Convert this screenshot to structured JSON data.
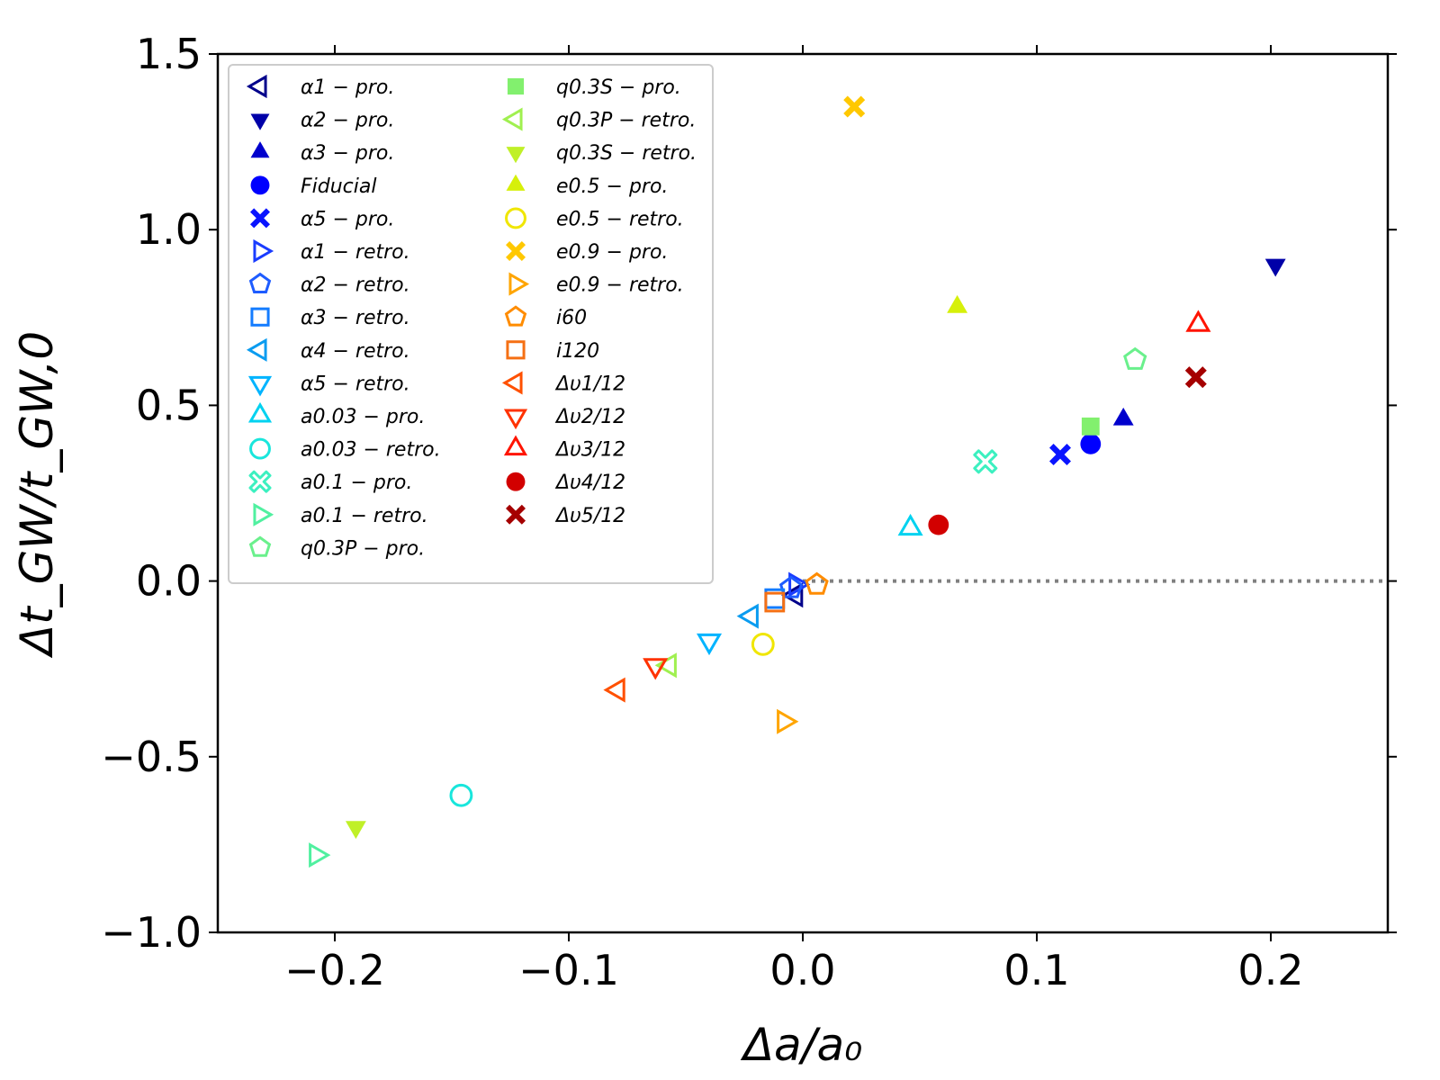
{
  "chart_data": {
    "type": "scatter",
    "title": "",
    "xlabel": "Δa/a₀",
    "ylabel": "Δt_GW/t_GW,0",
    "xlim": [
      -0.25,
      0.25
    ],
    "ylim": [
      -1.0,
      1.5
    ],
    "xticks": [
      -0.2,
      -0.1,
      0.0,
      0.1,
      0.2
    ],
    "xtick_labels": [
      "−0.2",
      "−0.1",
      "0.0",
      "0.1",
      "0.2"
    ],
    "yticks": [
      -1.0,
      -0.5,
      0.0,
      0.5,
      1.0,
      1.5
    ],
    "ytick_labels": [
      "−1.0",
      "−0.5",
      "0.0",
      "0.5",
      "1.0",
      "1.5"
    ],
    "grid": false,
    "reference_line": {
      "y": 0.0,
      "style": "dotted",
      "color": "#808080"
    },
    "legend_position": "upper-left",
    "legend_columns": 2,
    "series": [
      {
        "name": "α1 − pro.",
        "marker": "triangle-left",
        "filled": false,
        "color": "#00008b",
        "x": -0.003,
        "y": -0.04
      },
      {
        "name": "α2 − pro.",
        "marker": "triangle-down",
        "filled": true,
        "color": "#0000a8",
        "x": 0.202,
        "y": 0.9
      },
      {
        "name": "α3 − pro.",
        "marker": "triangle-up",
        "filled": true,
        "color": "#0000cd",
        "x": 0.137,
        "y": 0.46
      },
      {
        "name": "Fiducial",
        "marker": "circle",
        "filled": true,
        "color": "#0000ff",
        "x": 0.123,
        "y": 0.39
      },
      {
        "name": "α5 − pro.",
        "marker": "x-filled",
        "filled": true,
        "color": "#0a14ff",
        "x": 0.11,
        "y": 0.36
      },
      {
        "name": "α1 − retro.",
        "marker": "triangle-right",
        "filled": false,
        "color": "#1a3cff",
        "x": -0.003,
        "y": -0.01
      },
      {
        "name": "α2 − retro.",
        "marker": "pentagon",
        "filled": false,
        "color": "#1e5cff",
        "x": -0.005,
        "y": -0.02
      },
      {
        "name": "α3 − retro.",
        "marker": "square",
        "filled": false,
        "color": "#147cff",
        "x": -0.012,
        "y": -0.05
      },
      {
        "name": "α4 − retro.",
        "marker": "triangle-left",
        "filled": false,
        "color": "#0a9cf0",
        "x": -0.022,
        "y": -0.1
      },
      {
        "name": "α5 − retro.",
        "marker": "triangle-down",
        "filled": false,
        "color": "#00b4ff",
        "x": -0.04,
        "y": -0.17
      },
      {
        "name": "a0.03 − pro.",
        "marker": "triangle-up",
        "filled": false,
        "color": "#00d2f0",
        "x": 0.046,
        "y": 0.15
      },
      {
        "name": "a0.03 − retro.",
        "marker": "circle",
        "filled": false,
        "color": "#19e6dc",
        "x": -0.146,
        "y": -0.61
      },
      {
        "name": "a0.1 − pro.",
        "marker": "x-open",
        "filled": false,
        "color": "#3cf0c0",
        "x": 0.078,
        "y": 0.34
      },
      {
        "name": "a0.1 − retro.",
        "marker": "triangle-right",
        "filled": false,
        "color": "#50f0a0",
        "x": -0.208,
        "y": -0.78
      },
      {
        "name": "q0.3P − pro.",
        "marker": "pentagon",
        "filled": false,
        "color": "#6af08c",
        "x": 0.142,
        "y": 0.63
      },
      {
        "name": "q0.3S − pro.",
        "marker": "square",
        "filled": true,
        "color": "#82f06e",
        "x": 0.123,
        "y": 0.44
      },
      {
        "name": "q0.3P − retro.",
        "marker": "triangle-left",
        "filled": false,
        "color": "#a0f050",
        "x": -0.057,
        "y": -0.24
      },
      {
        "name": "q0.3S − retro.",
        "marker": "triangle-down",
        "filled": true,
        "color": "#c0f028",
        "x": -0.191,
        "y": -0.7
      },
      {
        "name": "e0.5 − pro.",
        "marker": "triangle-up",
        "filled": true,
        "color": "#d6f00a",
        "x": 0.066,
        "y": 0.78
      },
      {
        "name": "e0.5 − retro.",
        "marker": "circle",
        "filled": false,
        "color": "#f0e600",
        "x": -0.017,
        "y": -0.18
      },
      {
        "name": "e0.9 − pro.",
        "marker": "x-filled",
        "filled": true,
        "color": "#ffc800",
        "x": 0.022,
        "y": 1.35
      },
      {
        "name": "e0.9 − retro.",
        "marker": "triangle-right",
        "filled": false,
        "color": "#ffa500",
        "x": -0.008,
        "y": -0.4
      },
      {
        "name": "i60",
        "marker": "pentagon",
        "filled": false,
        "color": "#ff8c00",
        "x": 0.006,
        "y": -0.01
      },
      {
        "name": "i120",
        "marker": "square",
        "filled": false,
        "color": "#f57014",
        "x": -0.012,
        "y": -0.06
      },
      {
        "name": "Δυ1/12",
        "marker": "triangle-left",
        "filled": false,
        "color": "#ff5000",
        "x": -0.079,
        "y": -0.31
      },
      {
        "name": "Δυ2/12",
        "marker": "triangle-down",
        "filled": false,
        "color": "#ff3200",
        "x": -0.063,
        "y": -0.24
      },
      {
        "name": "Δυ3/12",
        "marker": "triangle-up",
        "filled": false,
        "color": "#ff1400",
        "x": 0.169,
        "y": 0.73
      },
      {
        "name": "Δυ4/12",
        "marker": "circle",
        "filled": true,
        "color": "#d20000",
        "x": 0.058,
        "y": 0.16
      },
      {
        "name": "Δυ5/12",
        "marker": "x-filled",
        "filled": true,
        "color": "#a50000",
        "x": 0.168,
        "y": 0.58
      }
    ]
  }
}
